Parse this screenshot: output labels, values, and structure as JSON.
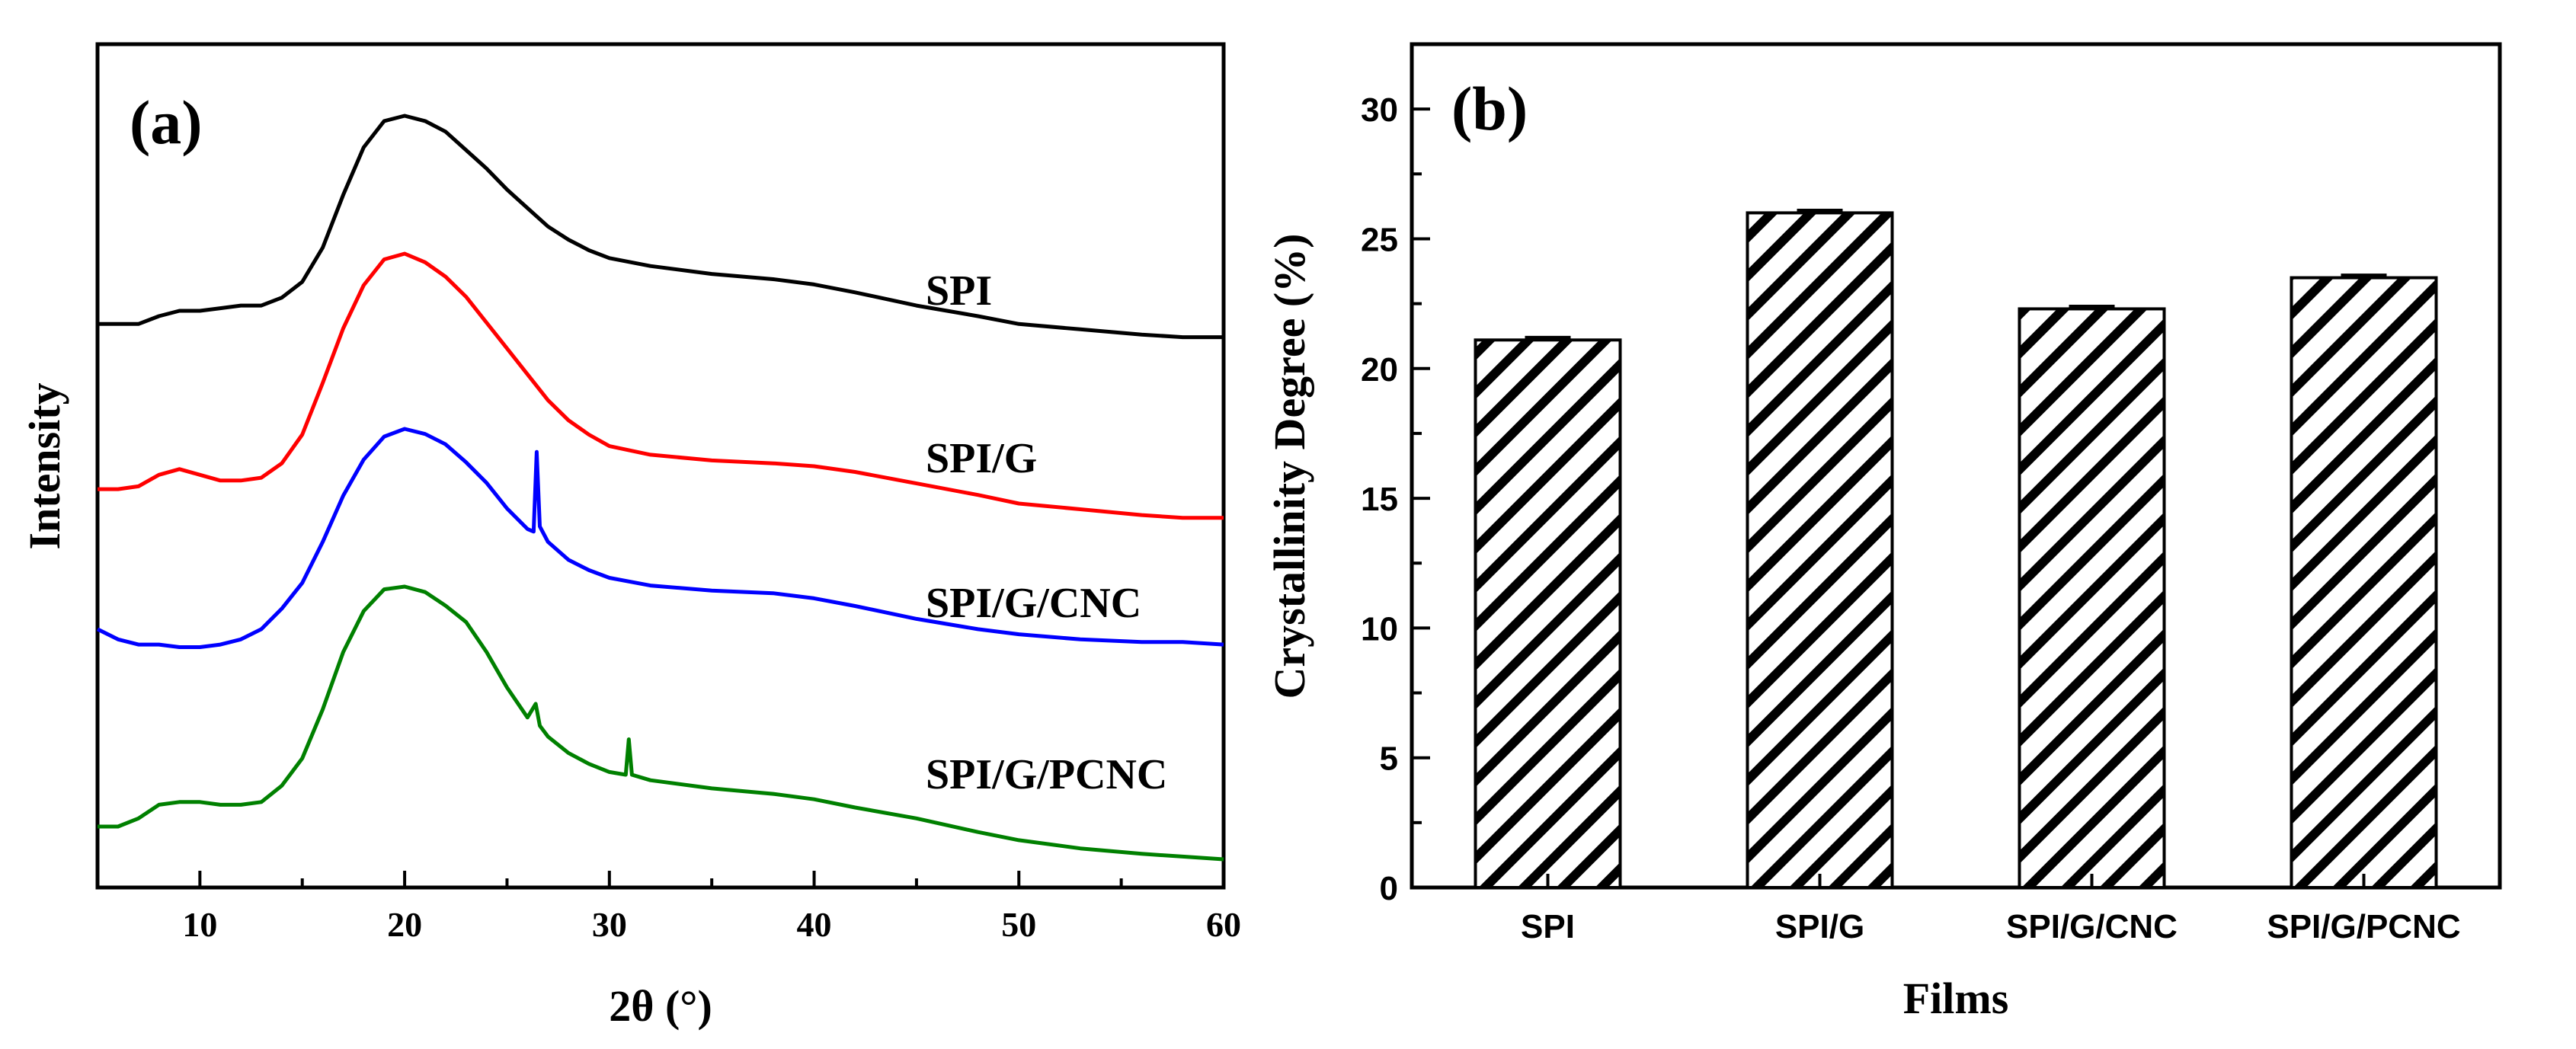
{
  "chart_data": [
    {
      "type": "line",
      "panel_label": "(a)",
      "xlabel": "2θ (°)",
      "ylabel": "Intensity",
      "xlim": [
        5,
        60
      ],
      "xticks": [
        "10",
        "20",
        "30",
        "40",
        "50",
        "60"
      ],
      "y_ticks_shown": false,
      "series": [
        {
          "name": "SPI",
          "color": "#000000",
          "points": [
            [
              5,
              0.21
            ],
            [
              6,
              0.21
            ],
            [
              7,
              0.21
            ],
            [
              8,
              0.24
            ],
            [
              9,
              0.26
            ],
            [
              10,
              0.26
            ],
            [
              11,
              0.27
            ],
            [
              12,
              0.28
            ],
            [
              13,
              0.28
            ],
            [
              14,
              0.31
            ],
            [
              15,
              0.37
            ],
            [
              16,
              0.5
            ],
            [
              17,
              0.7
            ],
            [
              18,
              0.88
            ],
            [
              19,
              0.98
            ],
            [
              20,
              1.0
            ],
            [
              21,
              0.98
            ],
            [
              22,
              0.94
            ],
            [
              23,
              0.87
            ],
            [
              24,
              0.8
            ],
            [
              25,
              0.72
            ],
            [
              26,
              0.65
            ],
            [
              27,
              0.58
            ],
            [
              28,
              0.53
            ],
            [
              29,
              0.49
            ],
            [
              30,
              0.46
            ],
            [
              32,
              0.43
            ],
            [
              35,
              0.4
            ],
            [
              38,
              0.38
            ],
            [
              40,
              0.36
            ],
            [
              42,
              0.33
            ],
            [
              45,
              0.28
            ],
            [
              48,
              0.24
            ],
            [
              50,
              0.21
            ],
            [
              53,
              0.19
            ],
            [
              56,
              0.17
            ],
            [
              58,
              0.16
            ],
            [
              60,
              0.16
            ]
          ]
        },
        {
          "name": "SPI/G",
          "color": "#ff0000",
          "points": [
            [
              5,
              0.18
            ],
            [
              6,
              0.18
            ],
            [
              7,
              0.19
            ],
            [
              8,
              0.23
            ],
            [
              9,
              0.25
            ],
            [
              10,
              0.23
            ],
            [
              11,
              0.21
            ],
            [
              12,
              0.21
            ],
            [
              13,
              0.22
            ],
            [
              14,
              0.27
            ],
            [
              15,
              0.37
            ],
            [
              16,
              0.55
            ],
            [
              17,
              0.74
            ],
            [
              18,
              0.89
            ],
            [
              19,
              0.98
            ],
            [
              20,
              1.0
            ],
            [
              21,
              0.97
            ],
            [
              22,
              0.92
            ],
            [
              23,
              0.85
            ],
            [
              24,
              0.76
            ],
            [
              25,
              0.67
            ],
            [
              26,
              0.58
            ],
            [
              27,
              0.49
            ],
            [
              28,
              0.42
            ],
            [
              29,
              0.37
            ],
            [
              30,
              0.33
            ],
            [
              32,
              0.3
            ],
            [
              35,
              0.28
            ],
            [
              38,
              0.27
            ],
            [
              40,
              0.26
            ],
            [
              42,
              0.24
            ],
            [
              45,
              0.2
            ],
            [
              48,
              0.16
            ],
            [
              50,
              0.13
            ],
            [
              53,
              0.11
            ],
            [
              56,
              0.09
            ],
            [
              58,
              0.08
            ],
            [
              60,
              0.08
            ]
          ]
        },
        {
          "name": "SPI/G/CNC",
          "color": "#0000ff",
          "points": [
            [
              5,
              0.22
            ],
            [
              6,
              0.18
            ],
            [
              7,
              0.16
            ],
            [
              8,
              0.16
            ],
            [
              9,
              0.15
            ],
            [
              10,
              0.15
            ],
            [
              11,
              0.16
            ],
            [
              12,
              0.18
            ],
            [
              13,
              0.22
            ],
            [
              14,
              0.3
            ],
            [
              15,
              0.4
            ],
            [
              16,
              0.56
            ],
            [
              17,
              0.74
            ],
            [
              18,
              0.88
            ],
            [
              19,
              0.97
            ],
            [
              20,
              1.0
            ],
            [
              21,
              0.98
            ],
            [
              22,
              0.94
            ],
            [
              23,
              0.87
            ],
            [
              24,
              0.79
            ],
            [
              25,
              0.69
            ],
            [
              26,
              0.61
            ],
            [
              26.3,
              0.6
            ],
            [
              26.45,
              0.91
            ],
            [
              26.6,
              0.62
            ],
            [
              27,
              0.56
            ],
            [
              28,
              0.49
            ],
            [
              29,
              0.45
            ],
            [
              30,
              0.42
            ],
            [
              32,
              0.39
            ],
            [
              35,
              0.37
            ],
            [
              38,
              0.36
            ],
            [
              40,
              0.34
            ],
            [
              42,
              0.31
            ],
            [
              45,
              0.26
            ],
            [
              48,
              0.22
            ],
            [
              50,
              0.2
            ],
            [
              53,
              0.18
            ],
            [
              56,
              0.17
            ],
            [
              58,
              0.17
            ],
            [
              60,
              0.16
            ]
          ]
        },
        {
          "name": "SPI/G/PCNC",
          "color": "#008000",
          "points": [
            [
              5,
              0.12
            ],
            [
              6,
              0.12
            ],
            [
              7,
              0.15
            ],
            [
              8,
              0.2
            ],
            [
              9,
              0.21
            ],
            [
              10,
              0.21
            ],
            [
              11,
              0.2
            ],
            [
              12,
              0.2
            ],
            [
              13,
              0.21
            ],
            [
              14,
              0.27
            ],
            [
              15,
              0.37
            ],
            [
              16,
              0.55
            ],
            [
              17,
              0.76
            ],
            [
              18,
              0.91
            ],
            [
              19,
              0.99
            ],
            [
              20,
              1.0
            ],
            [
              21,
              0.98
            ],
            [
              22,
              0.93
            ],
            [
              23,
              0.87
            ],
            [
              24,
              0.76
            ],
            [
              25,
              0.63
            ],
            [
              26,
              0.52
            ],
            [
              26.4,
              0.57
            ],
            [
              26.6,
              0.49
            ],
            [
              27,
              0.45
            ],
            [
              28,
              0.39
            ],
            [
              29,
              0.35
            ],
            [
              30,
              0.32
            ],
            [
              30.8,
              0.31
            ],
            [
              30.95,
              0.44
            ],
            [
              31.1,
              0.31
            ],
            [
              32,
              0.29
            ],
            [
              35,
              0.26
            ],
            [
              38,
              0.24
            ],
            [
              40,
              0.22
            ],
            [
              42,
              0.19
            ],
            [
              45,
              0.15
            ],
            [
              48,
              0.1
            ],
            [
              50,
              0.07
            ],
            [
              53,
              0.04
            ],
            [
              56,
              0.02
            ],
            [
              58,
              0.01
            ],
            [
              60,
              0.0
            ]
          ]
        }
      ]
    },
    {
      "type": "bar",
      "panel_label": "(b)",
      "title": "",
      "categories": [
        "SPI",
        "SPI/G",
        "SPI/G/CNC",
        "SPI/G/PCNC"
      ],
      "values": [
        21.1,
        26.0,
        22.3,
        23.5
      ],
      "error": [
        0.1,
        0.1,
        0.1,
        0.1
      ],
      "xlabel": "Films",
      "ylabel": "Crystallinity Degree (%)",
      "ylim": [
        0,
        32.5
      ],
      "yticks": [
        0,
        5,
        10,
        15,
        20,
        25,
        30
      ],
      "fill": "diagonal-hatch",
      "bar_color": "#000000"
    }
  ]
}
